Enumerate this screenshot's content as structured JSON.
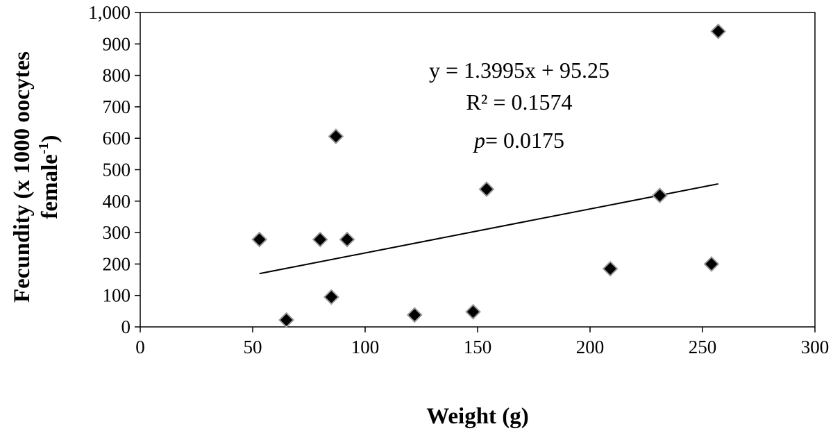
{
  "chart_data": {
    "type": "scatter",
    "xlabel": "Weight (g)",
    "ylabel": {
      "line1": "Fecundity (x 1000 oocytes",
      "line2_text": "female",
      "line2_sup": "-1",
      "line2_close": ")"
    },
    "xlim": [
      0,
      300
    ],
    "ylim": [
      0,
      1000
    ],
    "x_ticks": [
      {
        "value": 0,
        "label": "0"
      },
      {
        "value": 50,
        "label": "50"
      },
      {
        "value": 100,
        "label": "100"
      },
      {
        "value": 150,
        "label": "150"
      },
      {
        "value": 200,
        "label": "200"
      },
      {
        "value": 250,
        "label": "250"
      },
      {
        "value": 300,
        "label": "300"
      }
    ],
    "y_ticks": [
      {
        "value": 0,
        "label": "0"
      },
      {
        "value": 100,
        "label": "100"
      },
      {
        "value": 200,
        "label": "200"
      },
      {
        "value": 300,
        "label": "300"
      },
      {
        "value": 400,
        "label": "400"
      },
      {
        "value": 500,
        "label": "500"
      },
      {
        "value": 600,
        "label": "600"
      },
      {
        "value": 700,
        "label": "700"
      },
      {
        "value": 800,
        "label": "800"
      },
      {
        "value": 900,
        "label": "900"
      },
      {
        "value": 1000,
        "label": "1,000"
      }
    ],
    "points": [
      {
        "x": 53,
        "y": 278
      },
      {
        "x": 65,
        "y": 22
      },
      {
        "x": 80,
        "y": 278
      },
      {
        "x": 85,
        "y": 95
      },
      {
        "x": 87,
        "y": 606
      },
      {
        "x": 92,
        "y": 278
      },
      {
        "x": 122,
        "y": 38
      },
      {
        "x": 148,
        "y": 48
      },
      {
        "x": 154,
        "y": 438
      },
      {
        "x": 209,
        "y": 185
      },
      {
        "x": 231,
        "y": 418
      },
      {
        "x": 254,
        "y": 200
      },
      {
        "x": 257,
        "y": 940
      }
    ],
    "trendline": {
      "slope": 1.3995,
      "intercept": 95.25,
      "x_start": 53,
      "x_end": 257
    },
    "annotations": {
      "equation": "y = 1.3995x + 95.25",
      "r2": "R² = 0.1574",
      "p_symbol": "p",
      "p_value": "= 0.0175"
    },
    "grid": false,
    "legend": "none",
    "marker_color": "#000000",
    "marker_stroke": "#999999"
  }
}
